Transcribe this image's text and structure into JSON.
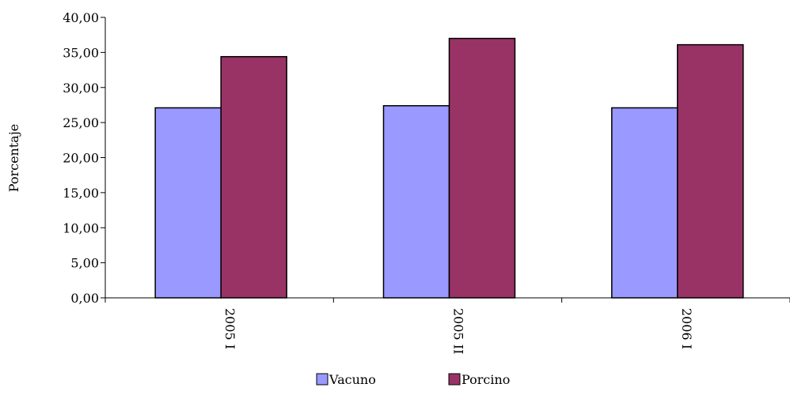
{
  "chart_data": {
    "type": "bar",
    "title": "",
    "xlabel": "",
    "ylabel": "Porcentaje",
    "categories": [
      "2005 I",
      "2005 II",
      "2006 I"
    ],
    "series": [
      {
        "name": "Vacuno",
        "values": [
          27.1,
          27.4,
          27.1
        ],
        "color": "#9999ff"
      },
      {
        "name": "Porcino",
        "values": [
          34.4,
          37.0,
          36.1
        ],
        "color": "#993366"
      }
    ],
    "ylim": [
      0,
      40
    ],
    "yticks": [
      "0,00",
      "5,00",
      "10,00",
      "15,00",
      "20,00",
      "25,00",
      "30,00",
      "35,00",
      "40,00"
    ],
    "grid": false,
    "legend_position": "bottom"
  }
}
